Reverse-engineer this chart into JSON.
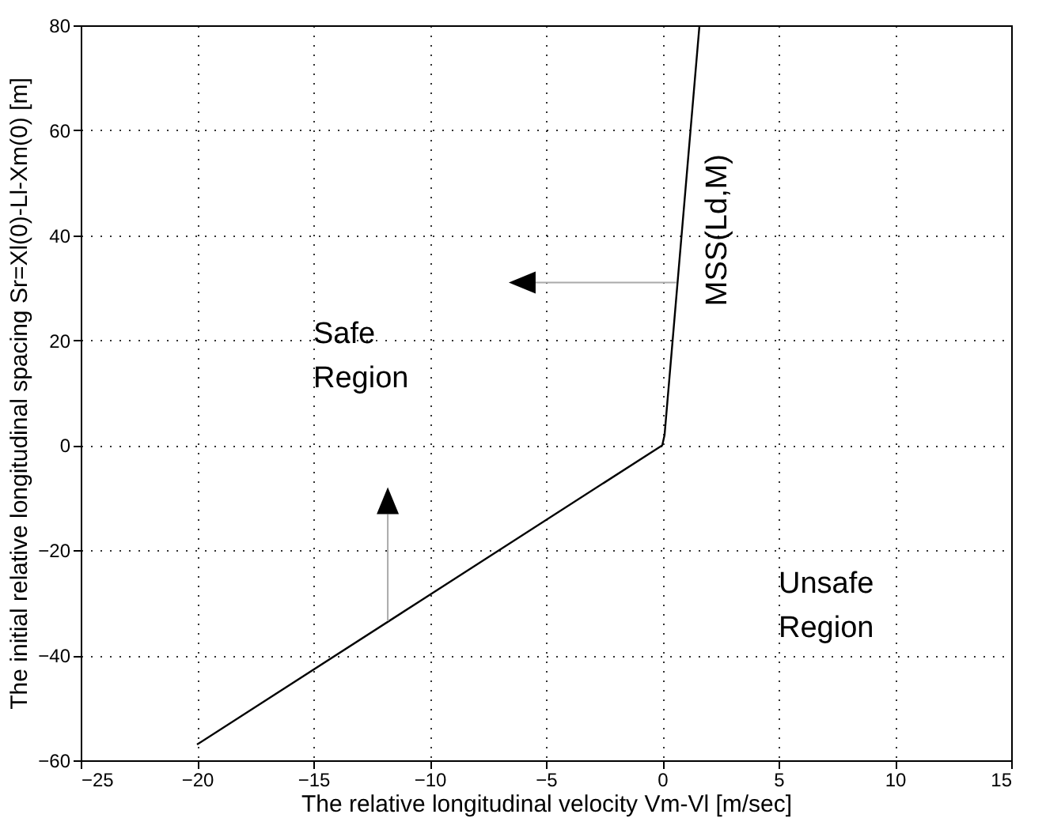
{
  "chart_data": {
    "type": "line",
    "xlabel": "The relative longitudinal velocity  Vm-Vl  [m/sec]",
    "ylabel": "The initial relative longitudinal spacing Sr=Xl(0)-Ll-Xm(0)  [m]",
    "series": [
      {
        "name": "MSS(Ld,M)",
        "color": "#000000",
        "x": [
          -20,
          0,
          0.1,
          1.6
        ],
        "values": [
          -57,
          0,
          2,
          80
        ]
      }
    ],
    "xlim": [
      -25,
      15
    ],
    "xticks": [
      -25,
      -20,
      -15,
      -10,
      -5,
      0,
      5,
      10,
      15
    ],
    "ylim": [
      -60,
      80
    ],
    "yticks": [
      -60,
      -40,
      -20,
      0,
      20,
      40,
      60,
      80
    ],
    "grid": true,
    "line_style": "solid",
    "marker": "none",
    "legend": false,
    "annotations": [
      "Safe Region",
      "Unsafe Region"
    ]
  }
}
